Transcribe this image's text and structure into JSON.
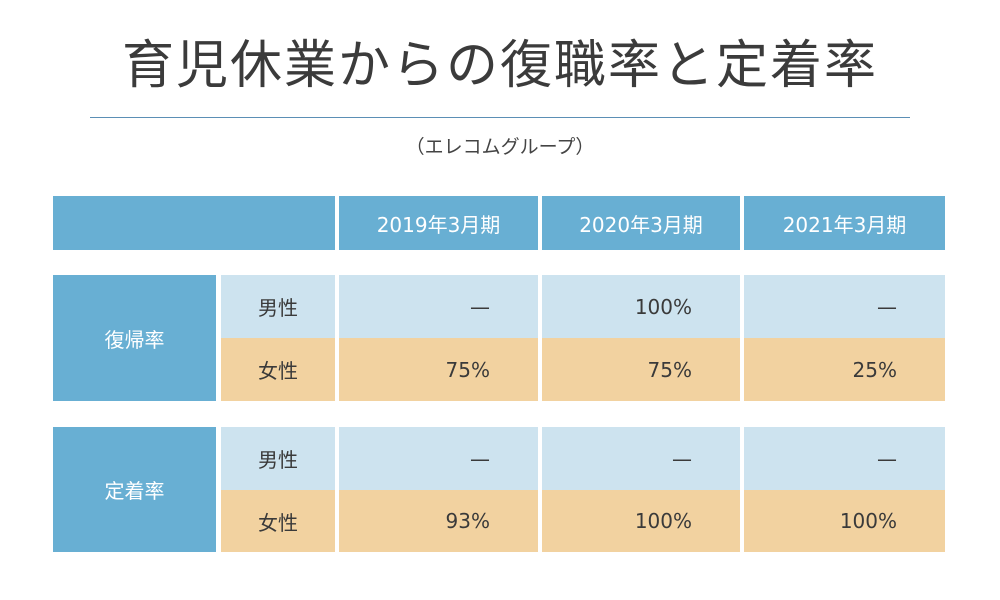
{
  "title": "育児休業からの復職率と定着率",
  "subtitle": "（エレコムグループ）",
  "colors": {
    "header_blue": "#68afd3",
    "male_row": "#cde3ef",
    "female_row": "#f2d2a0",
    "rule": "#5b8fb5"
  },
  "table": {
    "columns": [
      "2019年3月期",
      "2020年3月期",
      "2021年3月期"
    ],
    "groups": [
      {
        "label": "復帰率",
        "rows": [
          {
            "label": "男性",
            "values": [
              "—",
              "100%",
              "—"
            ]
          },
          {
            "label": "女性",
            "values": [
              "75%",
              "75%",
              "25%"
            ]
          }
        ]
      },
      {
        "label": "定着率",
        "rows": [
          {
            "label": "男性",
            "values": [
              "—",
              "—",
              "—"
            ]
          },
          {
            "label": "女性",
            "values": [
              "93%",
              "100%",
              "100%"
            ]
          }
        ]
      }
    ]
  }
}
